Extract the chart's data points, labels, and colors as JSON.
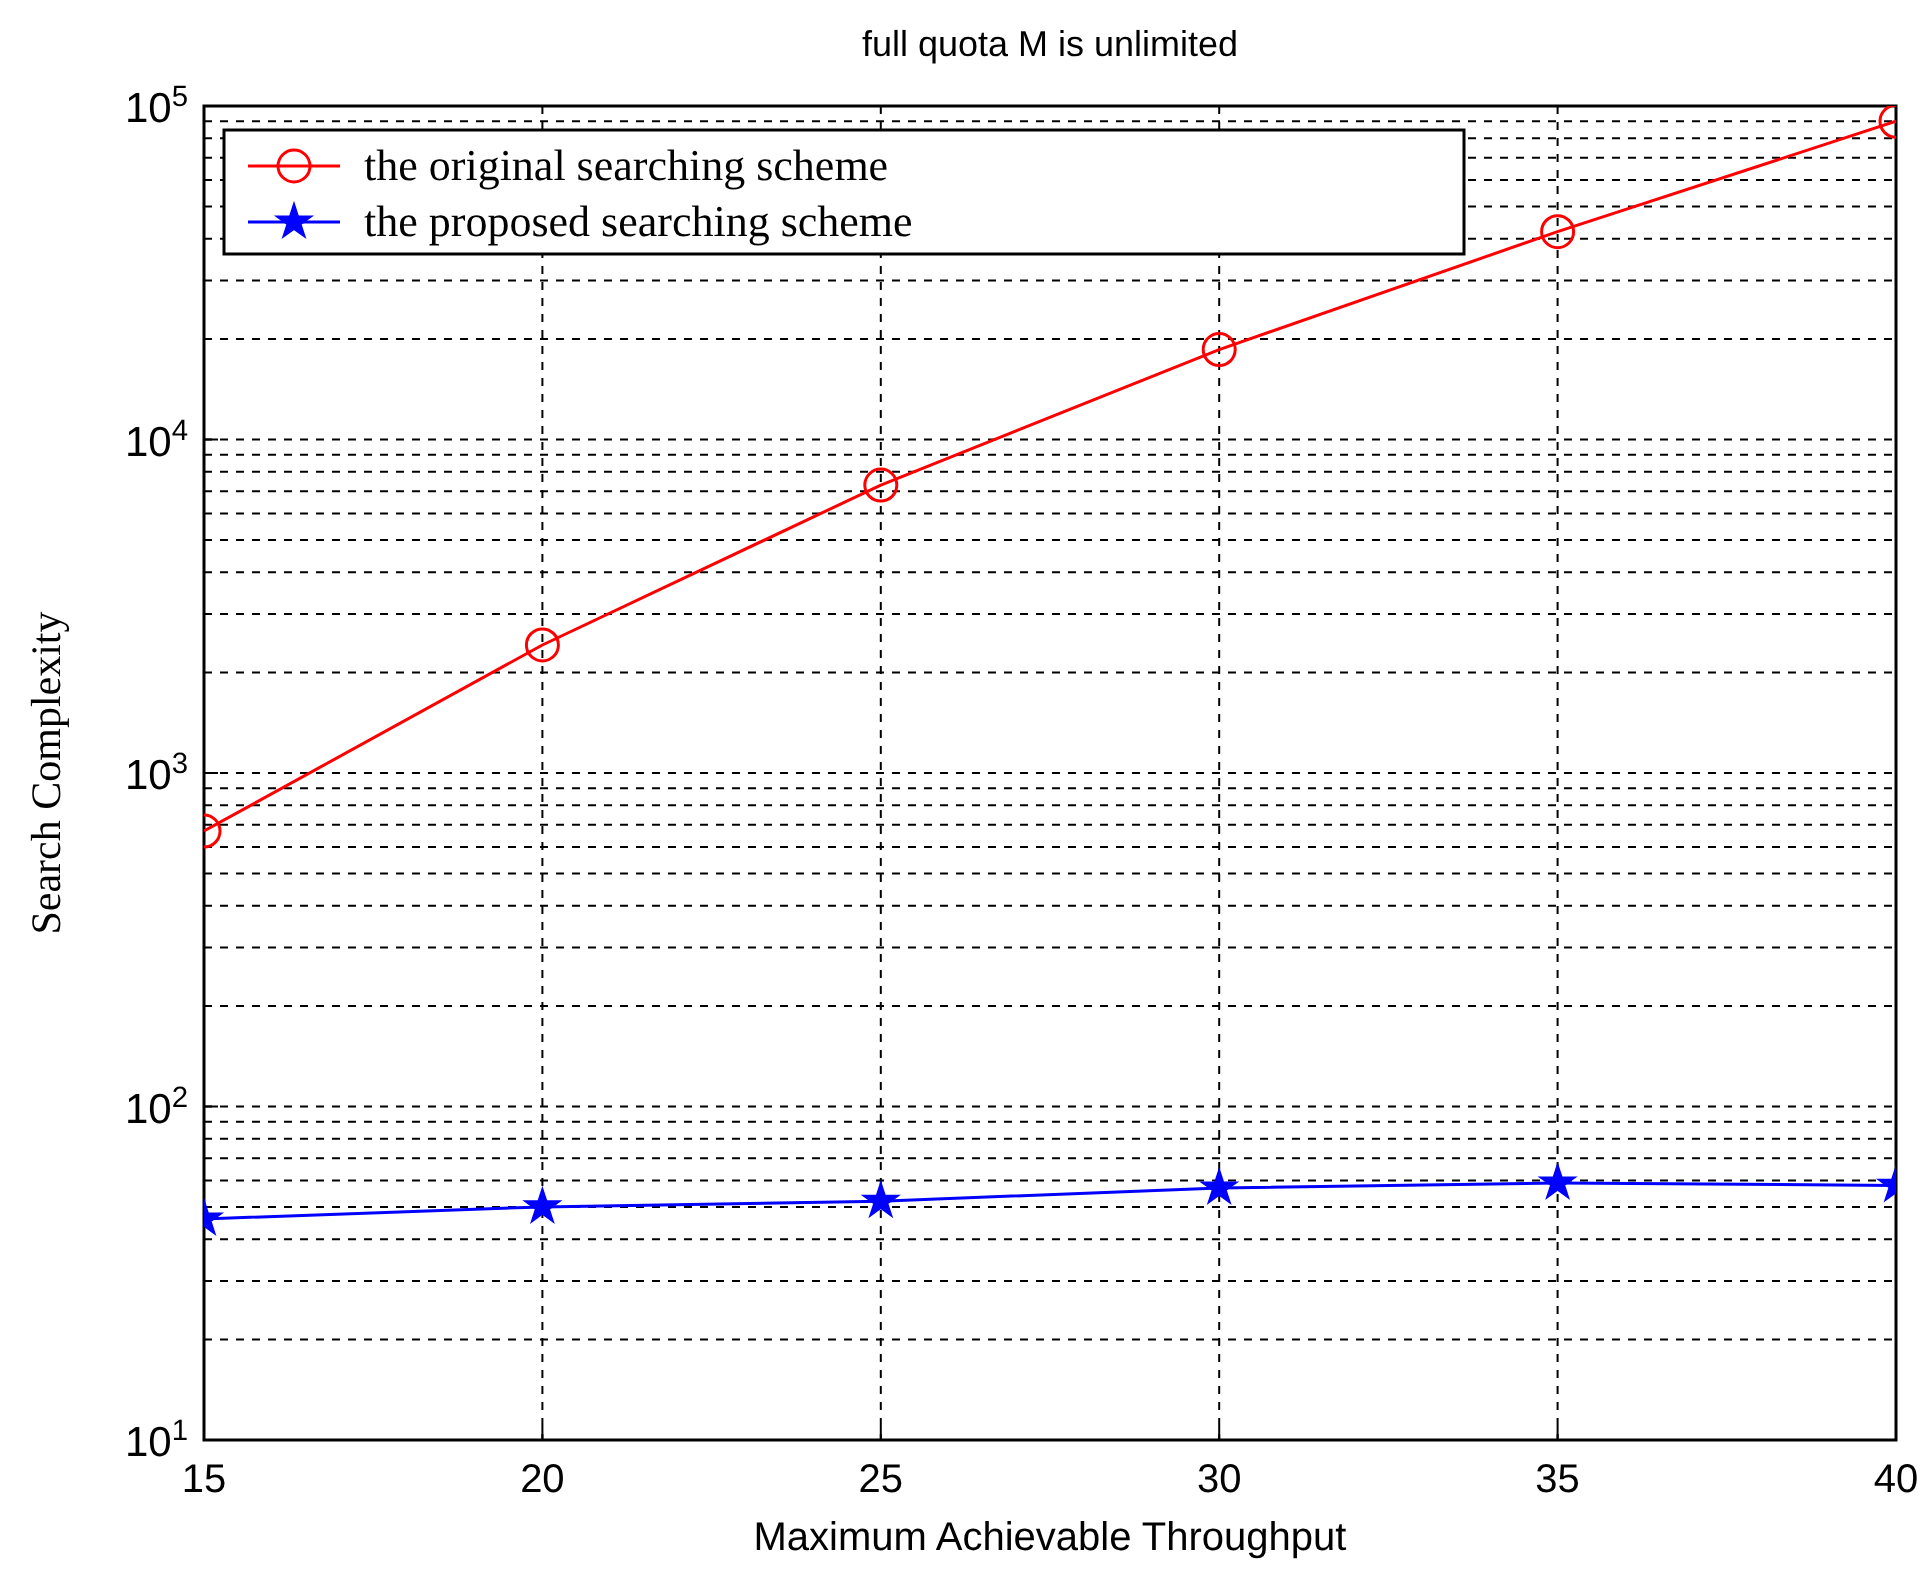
{
  "chart_data": {
    "type": "line",
    "title": "full quota M is unlimited",
    "xlabel": "Maximum Achievable Throughput",
    "ylabel": "Search Complexity",
    "x": [
      15,
      20,
      25,
      30,
      35,
      40
    ],
    "series": [
      {
        "name": "the original searching scheme",
        "color": "#ff0000",
        "marker": "circle",
        "values": [
          670,
          2420,
          7300,
          18600,
          42000,
          90000
        ]
      },
      {
        "name": "the proposed searching scheme",
        "color": "#0000ff",
        "marker": "star",
        "values": [
          46,
          50,
          52,
          57,
          59,
          58
        ]
      }
    ],
    "log": "y",
    "xlim": [
      15,
      40
    ],
    "xticks": [
      15,
      20,
      25,
      30,
      35,
      40
    ],
    "ylim": [
      10,
      100000
    ],
    "yticks": [
      {
        "value": 10,
        "label": "10$^{1}$"
      },
      {
        "value": 100,
        "label": "10$^{2}$"
      },
      {
        "value": 1000,
        "label": "10$^{3}$"
      },
      {
        "value": 10000,
        "label": "10$^{4}$"
      },
      {
        "value": 100000,
        "label": "10$^{5}$"
      }
    ],
    "grid": true,
    "legend": "top left",
    "line_style": "solid"
  }
}
